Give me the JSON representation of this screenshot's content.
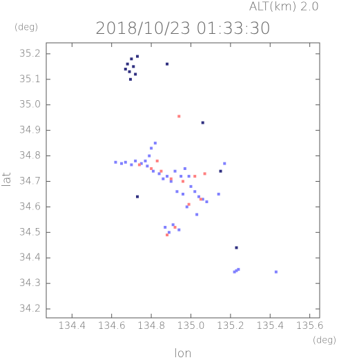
{
  "chart_data": {
    "type": "scatter",
    "title": "2018/10/23 01:33:30",
    "subtitle": "ALT(km) 2.0",
    "y_unit": "(deg)",
    "x_unit": "(deg)",
    "x_label": "lon",
    "y_label": "lat",
    "xlim": [
      134.27,
      135.65
    ],
    "ylim": [
      34.165,
      35.243
    ],
    "xticks": [
      134.4,
      134.6,
      134.8,
      {
        "value": 135,
        "label": "135.0"
      },
      135.2,
      135.4,
      135.6
    ],
    "yticks": [
      34.2,
      34.3,
      34.4,
      34.5,
      34.6,
      34.7,
      34.8,
      34.9,
      {
        "value": 35,
        "label": "35.0"
      },
      35.1,
      35.2
    ],
    "series": [
      {
        "color": "#8080ff",
        "x": [
          134.62,
          134.65,
          134.67,
          134.7,
          134.72,
          134.75,
          134.77,
          134.79,
          134.8,
          134.82,
          134.78,
          134.81,
          134.84,
          134.86,
          134.88,
          134.9,
          134.92,
          134.95,
          134.97,
          134.99,
          135.0,
          135.02,
          135.04,
          135.06,
          135.08,
          134.98,
          135.03,
          135.14,
          135.17,
          134.87,
          134.89,
          134.91,
          134.94,
          135.22,
          135.24,
          135.23,
          135.43,
          134.93,
          134.96
        ],
        "y": [
          34.775,
          34.77,
          34.775,
          34.765,
          34.78,
          34.77,
          34.78,
          34.8,
          34.83,
          34.85,
          34.76,
          34.74,
          34.73,
          34.71,
          34.72,
          34.7,
          34.74,
          34.72,
          34.75,
          34.72,
          34.68,
          34.66,
          34.64,
          34.63,
          34.62,
          34.6,
          34.57,
          34.65,
          34.77,
          34.52,
          34.5,
          34.53,
          34.51,
          34.345,
          34.355,
          34.35,
          34.345,
          34.66,
          34.65
        ]
      },
      {
        "color": "#ff8080",
        "x": [
          134.94,
          134.83,
          134.74,
          134.85,
          134.9,
          134.96,
          135.02,
          135.05,
          134.99,
          134.92,
          134.88,
          134.8,
          135.07
        ],
        "y": [
          34.955,
          34.78,
          34.765,
          34.74,
          34.71,
          34.7,
          34.72,
          34.63,
          34.61,
          34.52,
          34.49,
          34.75,
          34.73
        ]
      },
      {
        "color": "#303080",
        "x": [
          134.68,
          134.7,
          134.69,
          134.71,
          134.73,
          134.72,
          134.67,
          134.695,
          134.73,
          135.06,
          134.88,
          135.23,
          135.15
        ],
        "y": [
          35.16,
          35.18,
          35.13,
          35.15,
          35.19,
          35.12,
          35.14,
          35.1,
          34.64,
          34.93,
          35.16,
          34.44,
          34.74
        ]
      }
    ]
  }
}
